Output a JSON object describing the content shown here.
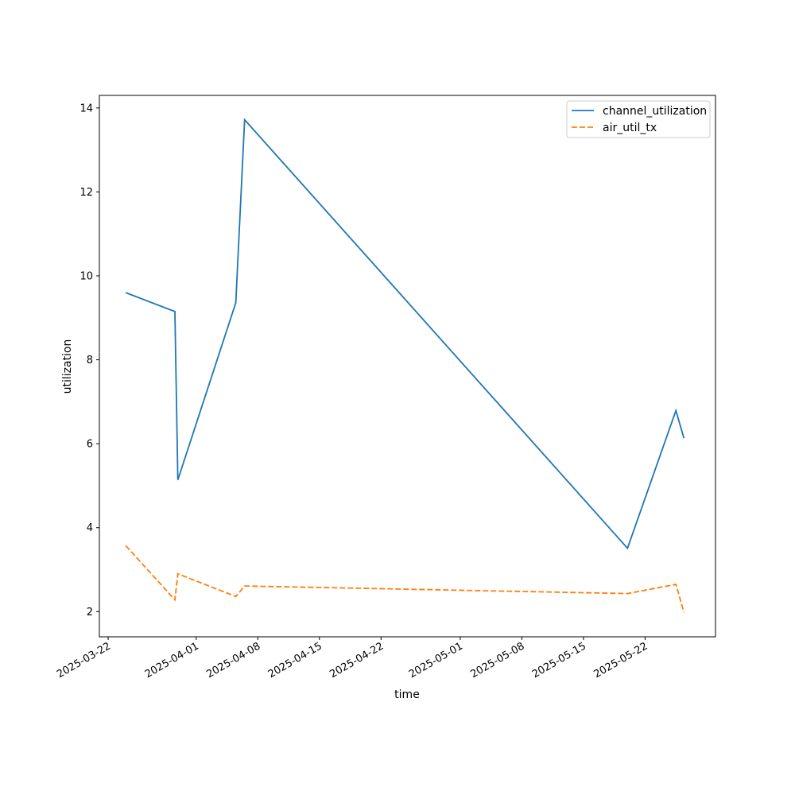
{
  "chart_data": {
    "type": "line",
    "xlabel": "time",
    "ylabel": "utilization",
    "x_type": "date",
    "xlim": [
      "2025-03-21",
      "2025-05-30"
    ],
    "ylim": [
      1.4,
      14.3
    ],
    "x_ticks": [
      {
        "date": "2025-03-22",
        "label": "2025-03-22"
      },
      {
        "date": "2025-04-01",
        "label": "2025-04-01"
      },
      {
        "date": "2025-04-08",
        "label": "2025-04-08"
      },
      {
        "date": "2025-04-15",
        "label": "2025-04-15"
      },
      {
        "date": "2025-04-22",
        "label": "2025-04-22"
      },
      {
        "date": "2025-05-01",
        "label": "2025-05-01"
      },
      {
        "date": "2025-05-08",
        "label": "2025-05-08"
      },
      {
        "date": "2025-05-15",
        "label": "2025-05-15"
      },
      {
        "date": "2025-05-22",
        "label": "2025-05-22"
      }
    ],
    "y_ticks": [
      {
        "value": 2,
        "label": "2"
      },
      {
        "value": 4,
        "label": "4"
      },
      {
        "value": 6,
        "label": "6"
      },
      {
        "value": 8,
        "label": "8"
      },
      {
        "value": 10,
        "label": "10"
      },
      {
        "value": 12,
        "label": "12"
      },
      {
        "value": 14,
        "label": "14"
      }
    ],
    "grid": false,
    "legend_position": "top-right",
    "series": [
      {
        "name": "channel_utilization",
        "color": "#1f77b4",
        "style": "solid",
        "points": [
          {
            "x": "2025-03-24",
            "y": 9.6
          },
          {
            "x": "2025-03-29 14:00",
            "y": 9.15
          },
          {
            "x": "2025-03-29 22:00",
            "y": 5.14
          },
          {
            "x": "2025-04-05 12:00",
            "y": 9.36
          },
          {
            "x": "2025-04-06 12:00",
            "y": 13.72
          },
          {
            "x": "2025-05-20",
            "y": 3.51
          },
          {
            "x": "2025-05-25 12:00",
            "y": 6.79
          },
          {
            "x": "2025-05-26 10:00",
            "y": 6.13
          }
        ]
      },
      {
        "name": "air_util_tx",
        "color": "#ff7f0e",
        "style": "dashed",
        "points": [
          {
            "x": "2025-03-24",
            "y": 3.57
          },
          {
            "x": "2025-03-29 14:00",
            "y": 2.28
          },
          {
            "x": "2025-03-29 22:00",
            "y": 2.9
          },
          {
            "x": "2025-04-05 12:00",
            "y": 2.36
          },
          {
            "x": "2025-04-06 12:00",
            "y": 2.61
          },
          {
            "x": "2025-05-20",
            "y": 2.43
          },
          {
            "x": "2025-05-25 12:00",
            "y": 2.65
          },
          {
            "x": "2025-05-26 10:00",
            "y": 1.98
          }
        ]
      }
    ]
  }
}
